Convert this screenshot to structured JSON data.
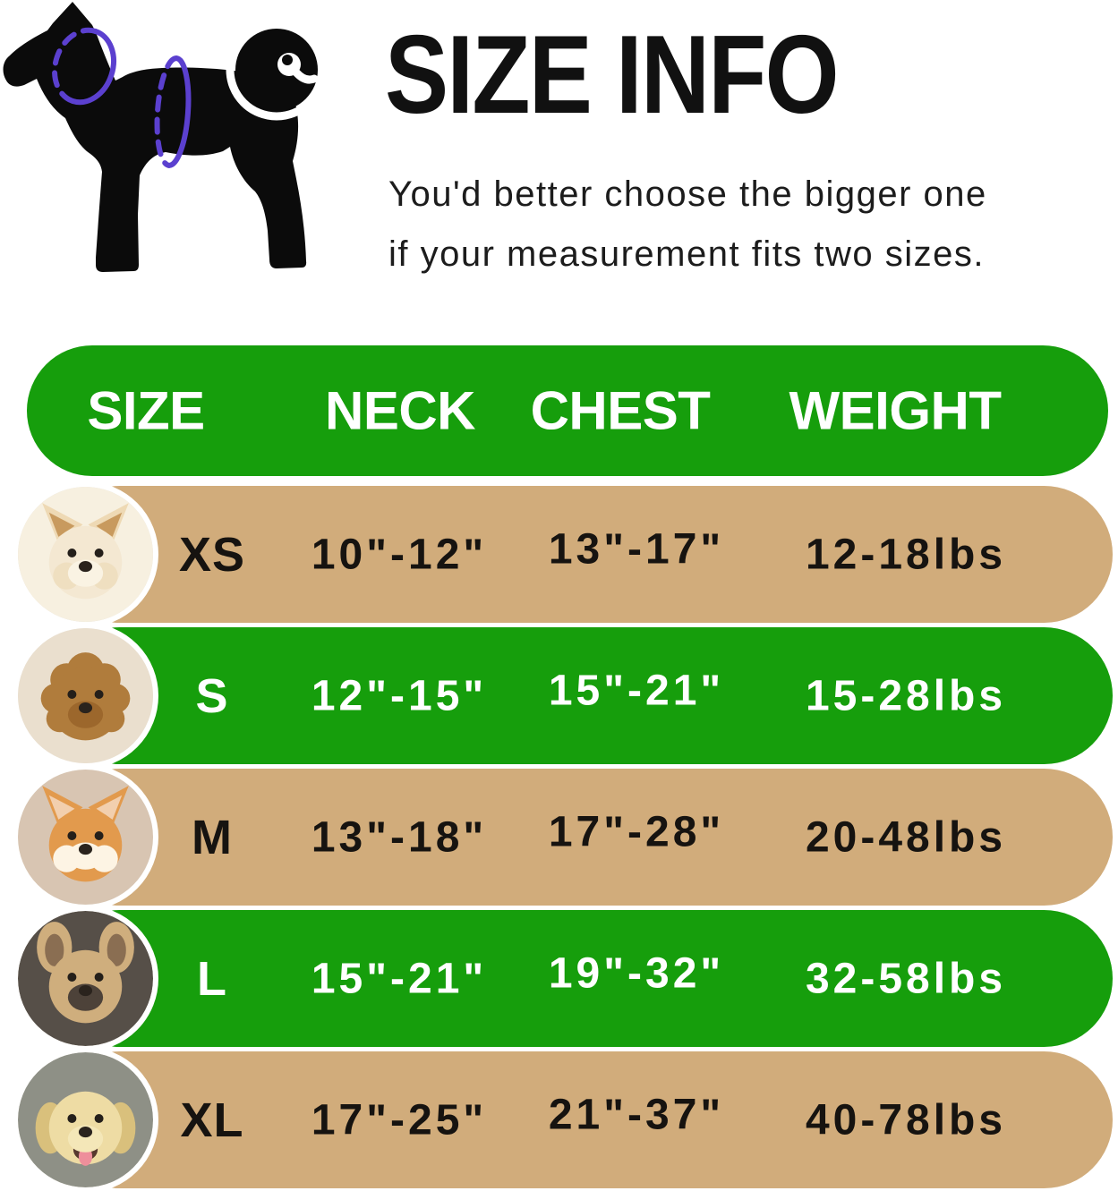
{
  "header": {
    "title": "SIZE INFO",
    "subtitle_line1": "You'd better choose the bigger one",
    "subtitle_line2": "if your measurement fits two sizes.",
    "hero_icon": "dog-measurement-silhouette-icon",
    "hero_rings": [
      "neck-measure-ring",
      "chest-measure-ring"
    ]
  },
  "colors": {
    "green": "#169E0C",
    "tan": "#D1AC7B",
    "ring_purple": "#5B40CF",
    "header_text": "#FFFFFF",
    "dark_text": "#141414"
  },
  "table": {
    "columns": [
      "SIZE",
      "NECK",
      "CHEST",
      "WEIGHT"
    ],
    "rows": [
      {
        "size": "XS",
        "neck": "10\"-12\"",
        "chest": "13\"-17\"",
        "weight": "12-18lbs",
        "variant": "tan",
        "photo": "pomeranian-photo"
      },
      {
        "size": "S",
        "neck": "12\"-15\"",
        "chest": "15\"-21\"",
        "weight": "15-28lbs",
        "variant": "green",
        "photo": "poodle-photo"
      },
      {
        "size": "M",
        "neck": "13\"-18\"",
        "chest": "17\"-28\"",
        "weight": "20-48lbs",
        "variant": "tan",
        "photo": "shiba-inu-photo"
      },
      {
        "size": "L",
        "neck": "15\"-21\"",
        "chest": "19\"-32\"",
        "weight": "32-58lbs",
        "variant": "green",
        "photo": "french-bulldog-photo"
      },
      {
        "size": "XL",
        "neck": "17\"-25\"",
        "chest": "21\"-37\"",
        "weight": "40-78lbs",
        "variant": "tan",
        "photo": "labrador-photo"
      }
    ]
  }
}
